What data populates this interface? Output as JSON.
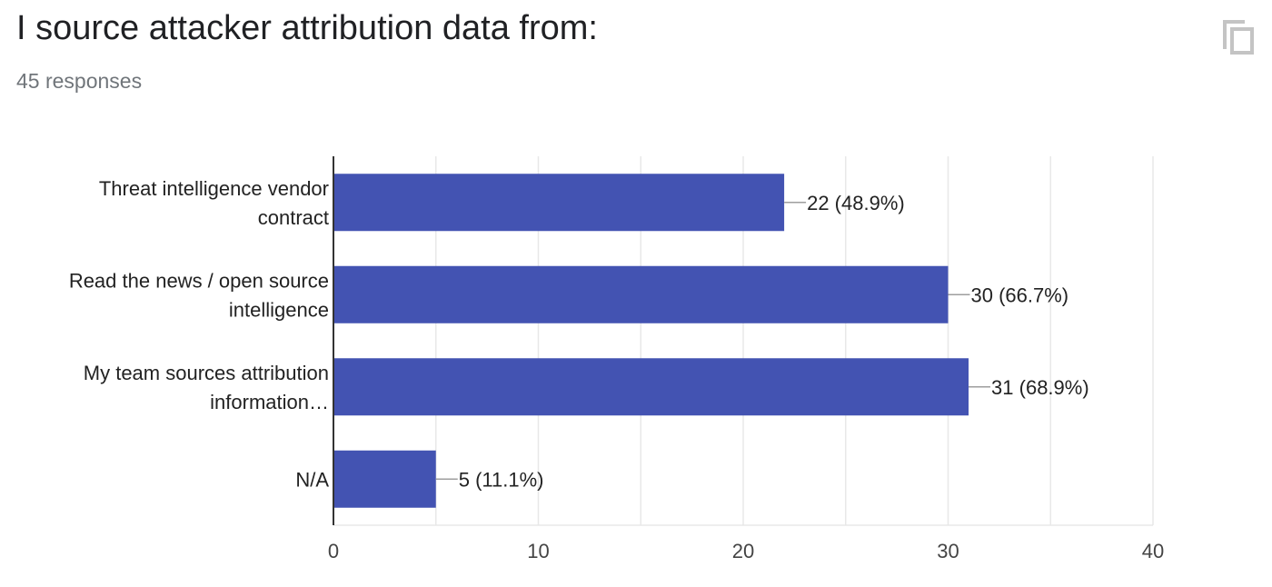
{
  "header": {
    "title": "I source attacker attribution data from:",
    "responses": "45 responses",
    "copy_icon": "copy-icon"
  },
  "colors": {
    "bar": "#4353b2",
    "grid": "#e8e8e8",
    "axis": "#333333",
    "label": "#222222",
    "tick": "#444444",
    "connector": "#9e9e9e",
    "copy_icon": "#c4c4c4"
  },
  "chart_data": {
    "type": "bar",
    "orientation": "horizontal",
    "categories": [
      [
        "Threat intelligence vendor",
        "contract"
      ],
      [
        "Read the news / open source",
        "intelligence"
      ],
      [
        "My team sources attribution",
        "information…"
      ],
      [
        "N/A"
      ]
    ],
    "values": [
      22,
      30,
      31,
      5
    ],
    "value_labels": [
      "22 (48.9%)",
      "30 (66.7%)",
      "31 (68.9%)",
      "5 (11.1%)"
    ],
    "xlim": [
      0,
      40
    ],
    "xticks": [
      0,
      10,
      20,
      30,
      40
    ],
    "grid": true
  }
}
